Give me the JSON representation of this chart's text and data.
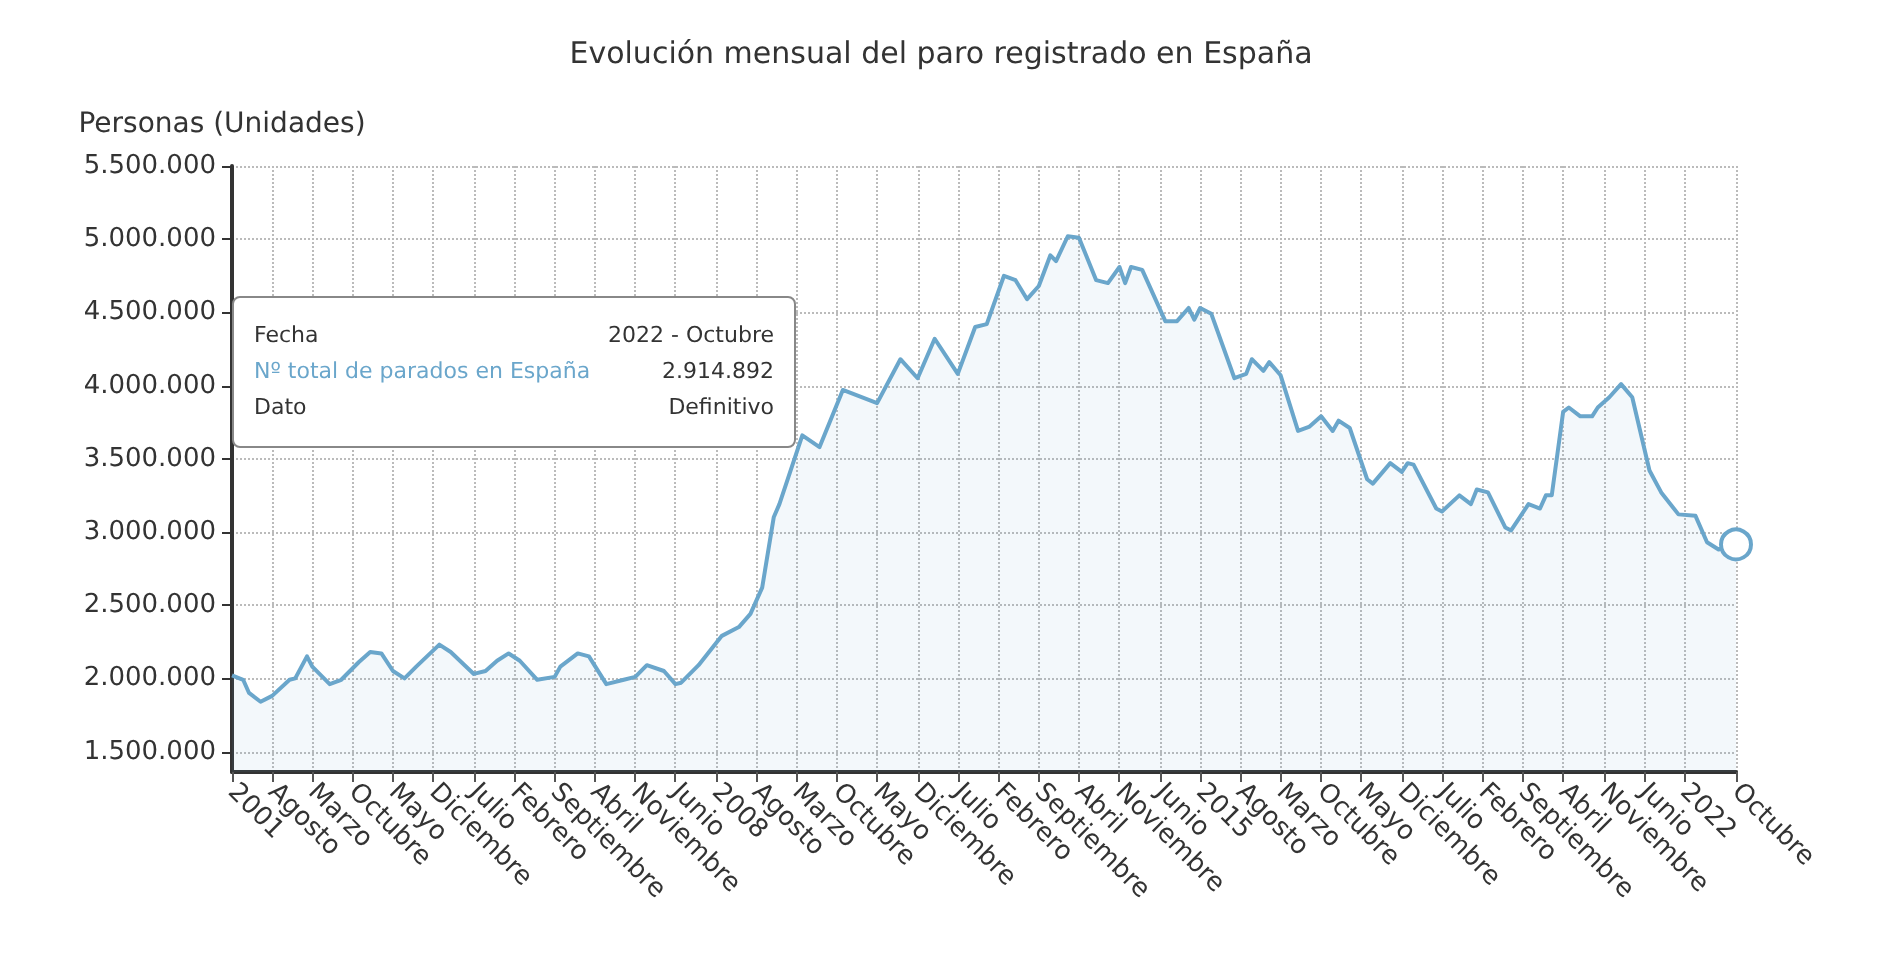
{
  "chart_data": {
    "type": "area",
    "title": "Evolución mensual del paro registrado en España",
    "ylabel": "Personas (Unidades)",
    "x": [
      "2001-01",
      "2001-03",
      "2001-04",
      "2001-06",
      "2001-08",
      "2001-11",
      "2001-12",
      "2002-02",
      "2002-03",
      "2002-06",
      "2002-08",
      "2002-11",
      "2003-01",
      "2003-03",
      "2003-05",
      "2003-07",
      "2003-09",
      "2004-01",
      "2004-03",
      "2004-07",
      "2004-09",
      "2004-11",
      "2005-01",
      "2005-03",
      "2005-06",
      "2005-09",
      "2005-10",
      "2006-01",
      "2006-03",
      "2006-06",
      "2006-09",
      "2006-11",
      "2007-01",
      "2007-04",
      "2007-06",
      "2007-07",
      "2007-10",
      "2008-02",
      "2008-05",
      "2008-07",
      "2008-09",
      "2008-11",
      "2008-12",
      "2009-04",
      "2009-07",
      "2009-11",
      "2010-05",
      "2010-09",
      "2010-12",
      "2011-03",
      "2011-07",
      "2011-10",
      "2011-12",
      "2012-03",
      "2012-05",
      "2012-07",
      "2012-09",
      "2012-11",
      "2012-12",
      "2013-02",
      "2013-04",
      "2013-07",
      "2013-09",
      "2013-11",
      "2013-12",
      "2014-01",
      "2014-03",
      "2014-07",
      "2014-09",
      "2014-11",
      "2014-12",
      "2015-01",
      "2015-03",
      "2015-07",
      "2015-09",
      "2015-10",
      "2015-12",
      "2016-01",
      "2016-03",
      "2016-06",
      "2016-08",
      "2016-10",
      "2016-12",
      "2017-01",
      "2017-03",
      "2017-06",
      "2017-07",
      "2017-10",
      "2017-12",
      "2018-01",
      "2018-02",
      "2018-06",
      "2018-07",
      "2018-10",
      "2018-12",
      "2019-01",
      "2019-03",
      "2019-06",
      "2019-07",
      "2019-08",
      "2019-10",
      "2019-12",
      "2020-01",
      "2020-02",
      "2020-04",
      "2020-05",
      "2020-07",
      "2020-09",
      "2020-10",
      "2020-12",
      "2021-02",
      "2021-04",
      "2021-07",
      "2021-09",
      "2021-12",
      "2022-03",
      "2022-05",
      "2022-07",
      "2022-10"
    ],
    "series": [
      {
        "color": "#6aa6cb",
        "values": [
          2020000,
          1990000,
          1900000,
          1840000,
          1880000,
          1990000,
          2000000,
          2150000,
          2080000,
          1960000,
          1990000,
          2110000,
          2180000,
          2170000,
          2050000,
          2000000,
          2080000,
          2230000,
          2180000,
          2030000,
          2050000,
          2120000,
          2170000,
          2120000,
          1990000,
          2010000,
          2080000,
          2170000,
          2150000,
          1960000,
          1990000,
          2010000,
          2090000,
          2050000,
          1960000,
          1970000,
          2090000,
          2290000,
          2350000,
          2440000,
          2620000,
          3100000,
          3190000,
          3660000,
          3580000,
          3970000,
          3880000,
          4180000,
          4050000,
          4320000,
          4080000,
          4400000,
          4420000,
          4750000,
          4720000,
          4590000,
          4680000,
          4890000,
          4850000,
          5020000,
          5010000,
          4720000,
          4700000,
          4810000,
          4700000,
          4810000,
          4790000,
          4440000,
          4440000,
          4530000,
          4450000,
          4530000,
          4490000,
          4050000,
          4080000,
          4180000,
          4100000,
          4160000,
          4070000,
          3690000,
          3720000,
          3790000,
          3690000,
          3760000,
          3710000,
          3360000,
          3330000,
          3470000,
          3410000,
          3470000,
          3460000,
          3160000,
          3140000,
          3250000,
          3190000,
          3290000,
          3270000,
          3030000,
          3010000,
          3070000,
          3190000,
          3160000,
          3250000,
          3250000,
          3820000,
          3850000,
          3790000,
          3790000,
          3850000,
          3920000,
          4010000,
          3920000,
          3420000,
          3270000,
          3120000,
          3110000,
          2930000,
          2880000,
          2914892
        ]
      }
    ],
    "xlim": [
      "2001-01",
      "2022-10"
    ],
    "xticks": [
      {
        "value": "2001-01",
        "label": "2001"
      },
      {
        "value": "2001-08",
        "label": "Agosto"
      },
      {
        "value": "2002-03",
        "label": "Marzo"
      },
      {
        "value": "2002-10",
        "label": "Octubre"
      },
      {
        "value": "2003-05",
        "label": "Mayo"
      },
      {
        "value": "2003-12",
        "label": "Diciembre"
      },
      {
        "value": "2004-07",
        "label": "Julio"
      },
      {
        "value": "2005-02",
        "label": "Febrero"
      },
      {
        "value": "2005-09",
        "label": "Septiembre"
      },
      {
        "value": "2006-04",
        "label": "Abril"
      },
      {
        "value": "2006-11",
        "label": "Noviembre"
      },
      {
        "value": "2007-06",
        "label": "Junio"
      },
      {
        "value": "2008-01",
        "label": "2008"
      },
      {
        "value": "2008-08",
        "label": "Agosto"
      },
      {
        "value": "2009-03",
        "label": "Marzo"
      },
      {
        "value": "2009-10",
        "label": "Octubre"
      },
      {
        "value": "2010-05",
        "label": "Mayo"
      },
      {
        "value": "2010-12",
        "label": "Diciembre"
      },
      {
        "value": "2011-07",
        "label": "Julio"
      },
      {
        "value": "2012-02",
        "label": "Febrero"
      },
      {
        "value": "2012-09",
        "label": "Septiembre"
      },
      {
        "value": "2013-04",
        "label": "Abril"
      },
      {
        "value": "2013-11",
        "label": "Noviembre"
      },
      {
        "value": "2014-06",
        "label": "Junio"
      },
      {
        "value": "2015-01",
        "label": "2015"
      },
      {
        "value": "2015-08",
        "label": "Agosto"
      },
      {
        "value": "2016-03",
        "label": "Marzo"
      },
      {
        "value": "2016-10",
        "label": "Octubre"
      },
      {
        "value": "2017-05",
        "label": "Mayo"
      },
      {
        "value": "2017-12",
        "label": "Diciembre"
      },
      {
        "value": "2018-07",
        "label": "Julio"
      },
      {
        "value": "2019-02",
        "label": "Febrero"
      },
      {
        "value": "2019-09",
        "label": "Septiembre"
      },
      {
        "value": "2020-04",
        "label": "Abril"
      },
      {
        "value": "2020-11",
        "label": "Noviembre"
      },
      {
        "value": "2021-06",
        "label": "Junio"
      },
      {
        "value": "2022-01",
        "label": "2022"
      },
      {
        "value": "2022-10",
        "label": "Octubre"
      }
    ],
    "ylim": [
      1360000,
      5500000
    ],
    "yticks": [
      {
        "value": 1500000,
        "label": "1.500.000"
      },
      {
        "value": 2000000,
        "label": "2.000.000"
      },
      {
        "value": 2500000,
        "label": "2.500.000"
      },
      {
        "value": 3000000,
        "label": "3.000.000"
      },
      {
        "value": 3500000,
        "label": "3.500.000"
      },
      {
        "value": 4000000,
        "label": "4.000.000"
      },
      {
        "value": 4500000,
        "label": "4.500.000"
      },
      {
        "value": 5000000,
        "label": "5.000.000"
      },
      {
        "value": 5500000,
        "label": "5.500.000"
      }
    ],
    "grid": true,
    "annotations": [
      "Fecha",
      "2022 - Octubre",
      "Nº total de parados en España",
      "2.914.892",
      "Dato",
      "Definitivo"
    ]
  }
}
